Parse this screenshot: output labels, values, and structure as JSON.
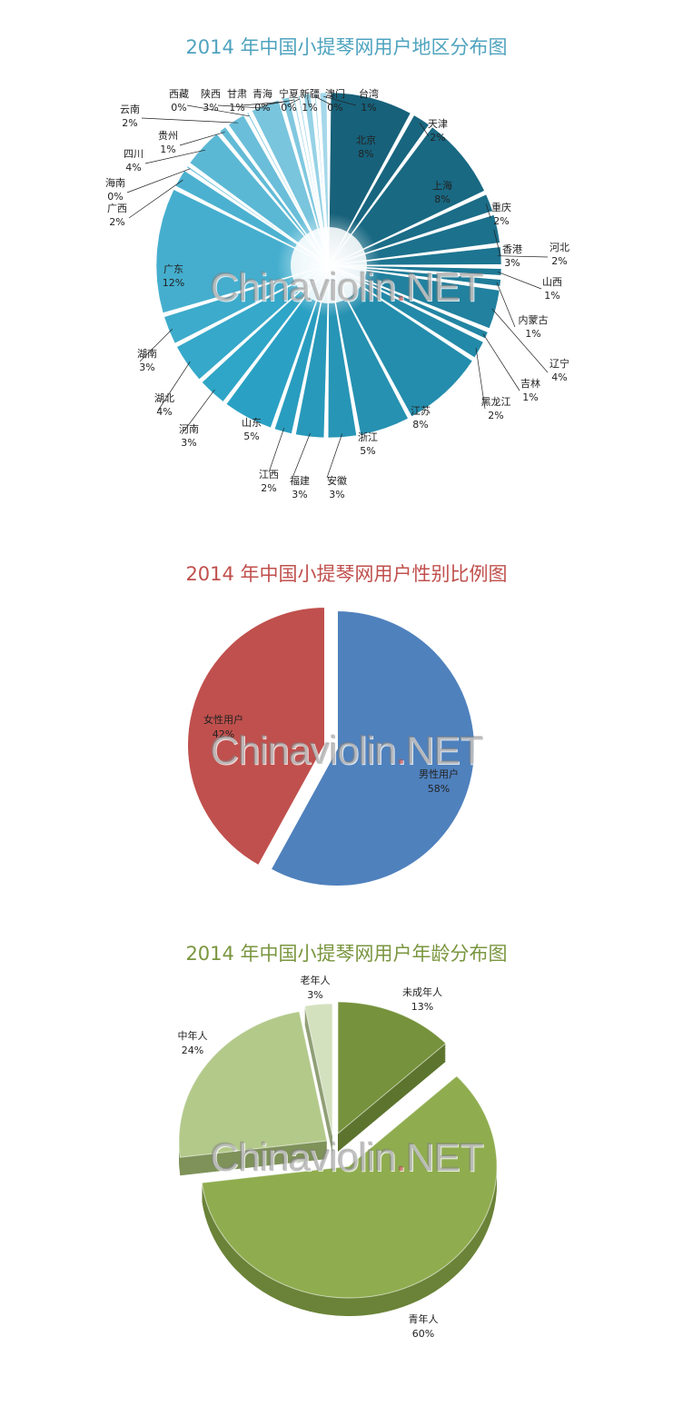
{
  "watermark": {
    "text": "Chinaviolin",
    "dot": ".",
    "suffix": "NET"
  },
  "chart_data": [
    {
      "type": "pie",
      "title": "2014 年中国小提琴网用户地区分布图",
      "title_color": "#4fa3bf",
      "categories": [
        "北京",
        "天津",
        "上海",
        "重庆",
        "香港",
        "河北",
        "山西",
        "内蒙古",
        "辽宁",
        "吉林",
        "黑龙江",
        "江苏",
        "浙江",
        "安徽",
        "福建",
        "江西",
        "山东",
        "河南",
        "湖北",
        "湖南",
        "广东",
        "广西",
        "海南",
        "四川",
        "贵州",
        "云南",
        "西藏",
        "陕西",
        "甘肃",
        "青海",
        "宁夏",
        "新疆",
        "澳门",
        "台湾"
      ],
      "values": [
        8,
        2,
        8,
        2,
        3,
        2,
        1,
        1,
        4,
        1,
        2,
        8,
        5,
        3,
        3,
        2,
        5,
        3,
        4,
        3,
        12,
        2,
        0,
        4,
        1,
        2,
        0,
        3,
        1,
        0,
        0,
        1,
        0,
        1
      ],
      "value_labels": [
        "8%",
        "2%",
        "8%",
        "2%",
        "3%",
        "2%",
        "1%",
        "1%",
        "4%",
        "1%",
        "2%",
        "8%",
        "5%",
        "3%",
        "3%",
        "2%",
        "5%",
        "3%",
        "4%",
        "3%",
        "12%",
        "2%",
        "0%",
        "4%",
        "1%",
        "2%",
        "0%",
        "3%",
        "1%",
        "0%",
        "0%",
        "1%",
        "0%",
        "1%"
      ],
      "colors": {
        "dark": "#17617a",
        "mid": "#2ba3c6",
        "light": "#a5d8ea"
      }
    },
    {
      "type": "pie",
      "title": "2014 年中国小提琴网用户性别比例图",
      "title_color": "#c0504d",
      "categories": [
        "男性用户",
        "女性用户"
      ],
      "values": [
        58,
        42
      ],
      "value_labels": [
        "58%",
        "42%"
      ],
      "colors": [
        "#4f81bd",
        "#c0504d"
      ]
    },
    {
      "type": "pie",
      "title": "2014 年中国小提琴网用户年龄分布图",
      "title_color": "#7a963f",
      "categories": [
        "未成年人",
        "青年人",
        "中年人",
        "老年人"
      ],
      "values": [
        13,
        60,
        24,
        3
      ],
      "value_labels": [
        "13%",
        "60%",
        "24%",
        "3%"
      ],
      "colors": [
        "#76923c",
        "#8fad4f",
        "#b3c98a",
        "#d4e1bf"
      ]
    }
  ]
}
